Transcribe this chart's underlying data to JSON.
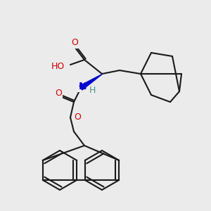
{
  "bg_color": "#ebebeb",
  "line_color": "#1a1a1a",
  "atom_colors": {
    "O": "#cc0000",
    "N": "#0000cc",
    "H_on_N": "#4a9090"
  },
  "font_size_atoms": 9,
  "line_width": 1.5
}
